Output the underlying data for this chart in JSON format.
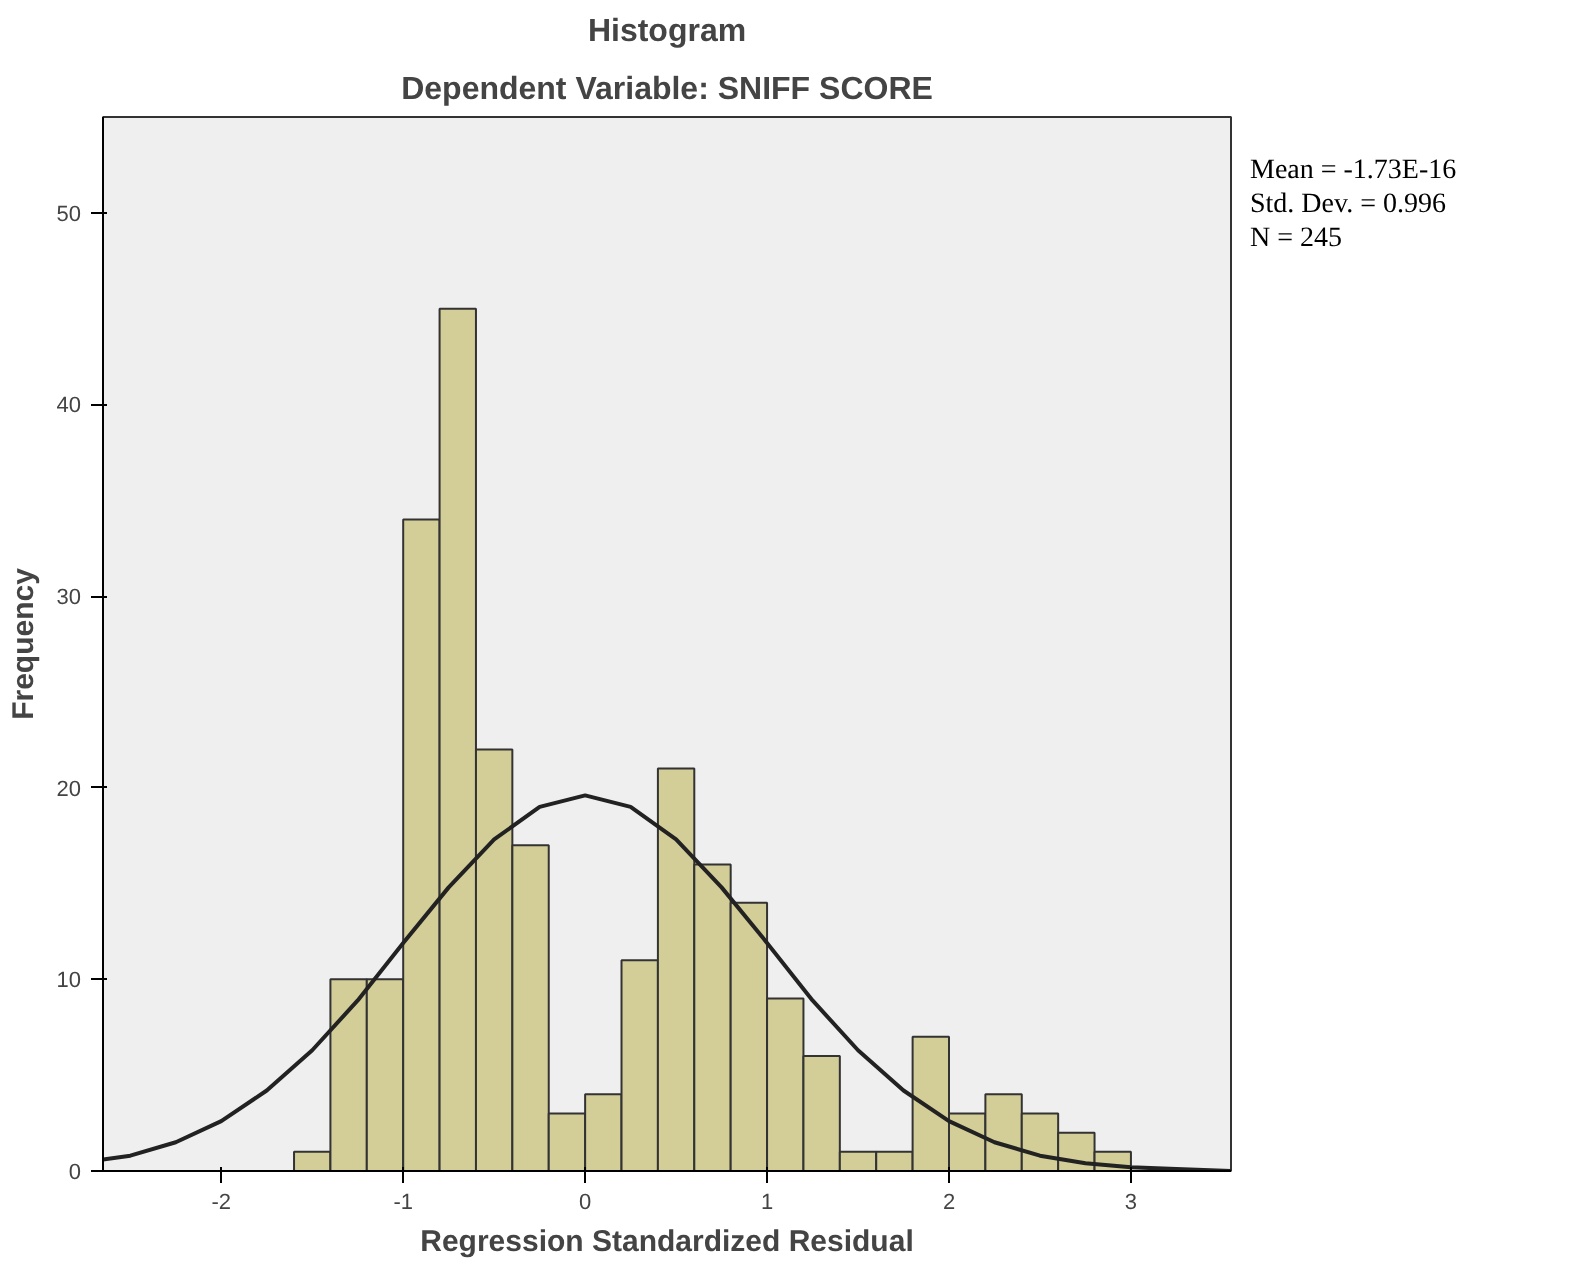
{
  "chart_data": {
    "type": "histogram",
    "title": "Histogram",
    "subtitle": "Dependent Variable: SNIFF SCORE",
    "xlabel": "Regression Standardized Residual",
    "ylabel": "Frequency",
    "bins": [
      -1.6,
      -1.4,
      -1.2,
      -1.0,
      -0.8,
      -0.6,
      -0.4,
      -0.2,
      0.0,
      0.2,
      0.4,
      0.6,
      0.8,
      1.0,
      1.2,
      1.4,
      1.6,
      1.8,
      2.0,
      2.2,
      2.4,
      2.6,
      2.8,
      3.0
    ],
    "values": [
      1,
      10,
      10,
      34,
      45,
      22,
      17,
      3,
      4,
      11,
      21,
      16,
      14,
      9,
      6,
      1,
      1,
      7,
      3,
      4,
      3,
      2,
      1
    ],
    "color": "#d3cd98",
    "series": [
      {
        "type": "line",
        "color": "#222222",
        "x": [
          -2.65,
          -2.5,
          -2.25,
          -2.0,
          -1.75,
          -1.5,
          -1.25,
          -1.0,
          -0.75,
          -0.5,
          -0.25,
          0.0,
          0.25,
          0.5,
          0.75,
          1.0,
          1.25,
          1.5,
          1.75,
          2.0,
          2.25,
          2.5,
          2.75,
          3.0,
          3.25,
          3.55
        ],
        "values": [
          0.6,
          0.8,
          1.5,
          2.6,
          4.2,
          6.3,
          8.9,
          11.9,
          14.8,
          17.3,
          19,
          19.6,
          19,
          17.3,
          14.8,
          11.9,
          8.9,
          6.3,
          4.2,
          2.6,
          1.5,
          0.8,
          0.4,
          0.2,
          0.1,
          0
        ]
      }
    ],
    "xlim": [
      -2.65,
      3.55
    ],
    "ylim": [
      0,
      55
    ],
    "xticks": [
      -2,
      -1,
      0,
      1,
      2,
      3
    ],
    "yticks": [
      0,
      10,
      20,
      30,
      40,
      50
    ],
    "grid": false,
    "annotations": [
      "Mean = -1.73E-16",
      "Std. Dev. = 0.996",
      "N = 245"
    ]
  }
}
